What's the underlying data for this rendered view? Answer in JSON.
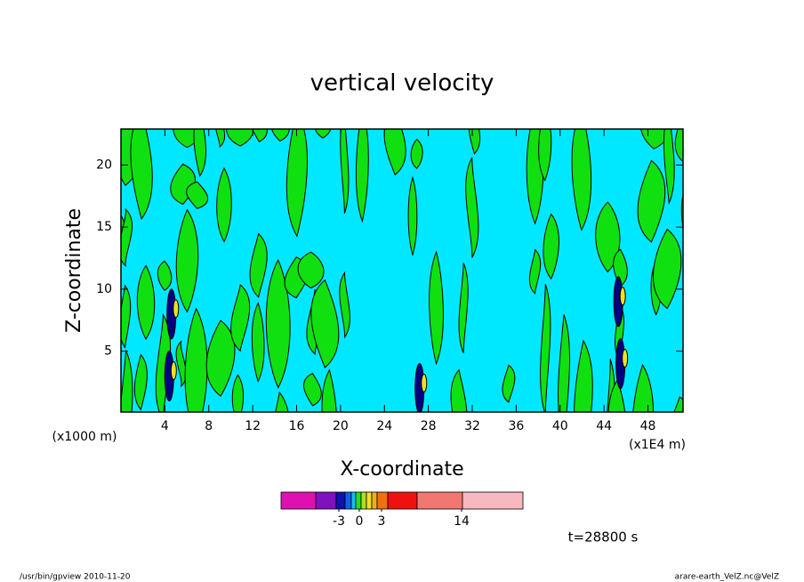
{
  "chart_data": {
    "type": "contour",
    "title": "vertical velocity",
    "x_label": "X-coordinate",
    "y_label": "Z-coordinate",
    "x_unit": "(x1E4 m)",
    "y_unit": "(x1000 m)",
    "xlim": [
      0,
      51.2
    ],
    "xticks": [
      4,
      8,
      12,
      16,
      20,
      24,
      28,
      32,
      36,
      40,
      44,
      48
    ],
    "ylim": [
      0.1,
      22.9
    ],
    "yticks": [
      5,
      10,
      15,
      20
    ],
    "colorbar": {
      "colors": [
        "#e010b0",
        "#8010c0",
        "#1010b0",
        "#1060f0",
        "#10c0f0",
        "#20e020",
        "#b0e020",
        "#f0e020",
        "#f0b010",
        "#f07010",
        "#f01010",
        "#f07870",
        "#f8b8c0"
      ],
      "ticks": [
        -3,
        0,
        3,
        14
      ]
    },
    "annotation": "t=28800 s",
    "footer_left": "/usr/bin/gpview   2010-11-20",
    "footer_right": "arare-earth_VelZ.nc@VelZ"
  }
}
